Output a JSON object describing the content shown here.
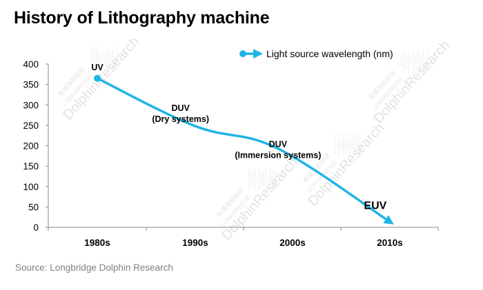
{
  "title": "History of Lithography machine",
  "source": "Source: Longbridge Dolphin Research",
  "watermark": {
    "brand": "DolphinResearch",
    "sub": "LONGBRIDGE",
    "cn": "長橋海豚投研"
  },
  "colors": {
    "series": "#1fb4e6",
    "axis": "#888888",
    "text": "#000000",
    "source": "#7f7f7f",
    "watermark": "#e2e2e2"
  },
  "chart_data": {
    "type": "line",
    "title": "History of Lithography machine",
    "xlabel": "",
    "ylabel": "",
    "categories": [
      "1980s",
      "1990s",
      "2000s",
      "2010s"
    ],
    "ylim": [
      0,
      400
    ],
    "yticks": [
      0,
      50,
      100,
      150,
      200,
      250,
      300,
      350,
      400
    ],
    "grid": false,
    "legend": {
      "position": "top-right",
      "entries": [
        "Light source wavelength (nm)"
      ]
    },
    "series": [
      {
        "name": "Light source wavelength (nm)",
        "x": [
          0,
          1,
          1.85,
          3
        ],
        "values": [
          365,
          248,
          193,
          13.5
        ],
        "smooth": true,
        "start_marker": "circle",
        "end_marker": "arrow"
      }
    ],
    "annotations": [
      {
        "lines": [
          "UV"
        ],
        "x": 0,
        "y": 385,
        "style": "normal"
      },
      {
        "lines": [
          "DUV",
          "(Dry systems)"
        ],
        "x": 0.85,
        "y": 285,
        "style": "normal"
      },
      {
        "lines": [
          "DUV",
          "(Immersion systems)"
        ],
        "x": 1.85,
        "y": 197,
        "style": "normal"
      },
      {
        "lines": [
          "EUV"
        ],
        "x": 2.85,
        "y": 45,
        "style": "large"
      }
    ]
  }
}
